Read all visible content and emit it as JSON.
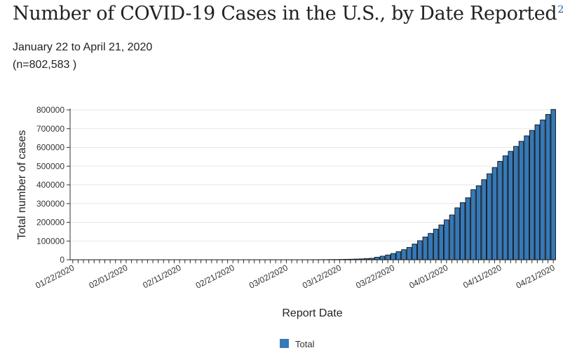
{
  "header": {
    "title": "Number of COVID-19 Cases in the U.S., by Date Reported",
    "title_footnote": "2",
    "subtitle": "January 22 to April 21, 2020",
    "count": "(n=802,583 )"
  },
  "colors": {
    "bar_fill": "#3579b8",
    "bar_stroke": "#111111",
    "grid": "#e6e6e6",
    "footnote": "#1f5fa8"
  },
  "chart_data": {
    "type": "bar",
    "title": "Number of COVID-19 Cases in the U.S., by Date Reported",
    "xlabel": "Report Date",
    "ylabel": "Total number of cases",
    "ylim": [
      0,
      800000
    ],
    "yticks": [
      0,
      100000,
      200000,
      300000,
      400000,
      500000,
      600000,
      700000,
      800000
    ],
    "ytick_labels": [
      "0",
      "100000",
      "200000",
      "300000",
      "400000",
      "500000",
      "600000",
      "700000",
      "800000"
    ],
    "xtick_labels": [
      "01/22/2020",
      "02/01/2020",
      "02/11/2020",
      "02/21/2020",
      "03/02/2020",
      "03/12/2020",
      "03/22/2020",
      "04/01/2020",
      "04/11/2020",
      "04/21/2020"
    ],
    "grid": true,
    "legend": {
      "position": "bottom-center",
      "entries": [
        "Total"
      ]
    },
    "categories": [
      "01/22/2020",
      "01/23/2020",
      "01/24/2020",
      "01/25/2020",
      "01/26/2020",
      "01/27/2020",
      "01/28/2020",
      "01/29/2020",
      "01/30/2020",
      "01/31/2020",
      "02/01/2020",
      "02/02/2020",
      "02/03/2020",
      "02/04/2020",
      "02/05/2020",
      "02/06/2020",
      "02/07/2020",
      "02/08/2020",
      "02/09/2020",
      "02/10/2020",
      "02/11/2020",
      "02/12/2020",
      "02/13/2020",
      "02/14/2020",
      "02/15/2020",
      "02/16/2020",
      "02/17/2020",
      "02/18/2020",
      "02/19/2020",
      "02/20/2020",
      "02/21/2020",
      "02/22/2020",
      "02/23/2020",
      "02/24/2020",
      "02/25/2020",
      "02/26/2020",
      "02/27/2020",
      "02/28/2020",
      "02/29/2020",
      "03/01/2020",
      "03/02/2020",
      "03/03/2020",
      "03/04/2020",
      "03/05/2020",
      "03/06/2020",
      "03/07/2020",
      "03/08/2020",
      "03/09/2020",
      "03/10/2020",
      "03/11/2020",
      "03/12/2020",
      "03/13/2020",
      "03/14/2020",
      "03/15/2020",
      "03/16/2020",
      "03/17/2020",
      "03/18/2020",
      "03/19/2020",
      "03/20/2020",
      "03/21/2020",
      "03/22/2020",
      "03/23/2020",
      "03/24/2020",
      "03/25/2020",
      "03/26/2020",
      "03/27/2020",
      "03/28/2020",
      "03/29/2020",
      "03/30/2020",
      "03/31/2020",
      "04/01/2020",
      "04/02/2020",
      "04/03/2020",
      "04/04/2020",
      "04/05/2020",
      "04/06/2020",
      "04/07/2020",
      "04/08/2020",
      "04/09/2020",
      "04/10/2020",
      "04/11/2020",
      "04/12/2020",
      "04/13/2020",
      "04/14/2020",
      "04/15/2020",
      "04/16/2020",
      "04/17/2020",
      "04/18/2020",
      "04/19/2020",
      "04/20/2020",
      "04/21/2020"
    ],
    "series": [
      {
        "name": "Total",
        "values": [
          1,
          1,
          2,
          2,
          5,
          5,
          5,
          5,
          6,
          7,
          8,
          8,
          11,
          11,
          11,
          12,
          12,
          12,
          12,
          12,
          13,
          13,
          14,
          15,
          15,
          15,
          15,
          15,
          15,
          15,
          15,
          35,
          35,
          35,
          53,
          57,
          60,
          60,
          62,
          75,
          100,
          124,
          158,
          221,
          319,
          435,
          541,
          704,
          994,
          1301,
          1630,
          2183,
          2726,
          3499,
          4632,
          6421,
          7786,
          13680,
          19101,
          25493,
          33404,
          43214,
          53740,
          65778,
          83836,
          101657,
          121478,
          140886,
          163539,
          186101,
          213144,
          239279,
          277205,
          304826,
          330891,
          374329,
          395011,
          427460,
          459165,
          492416,
          525704,
          554849,
          579005,
          605390,
          632548,
          661712,
          690714,
          720630,
          746625,
          776093,
          802583
        ]
      }
    ]
  }
}
